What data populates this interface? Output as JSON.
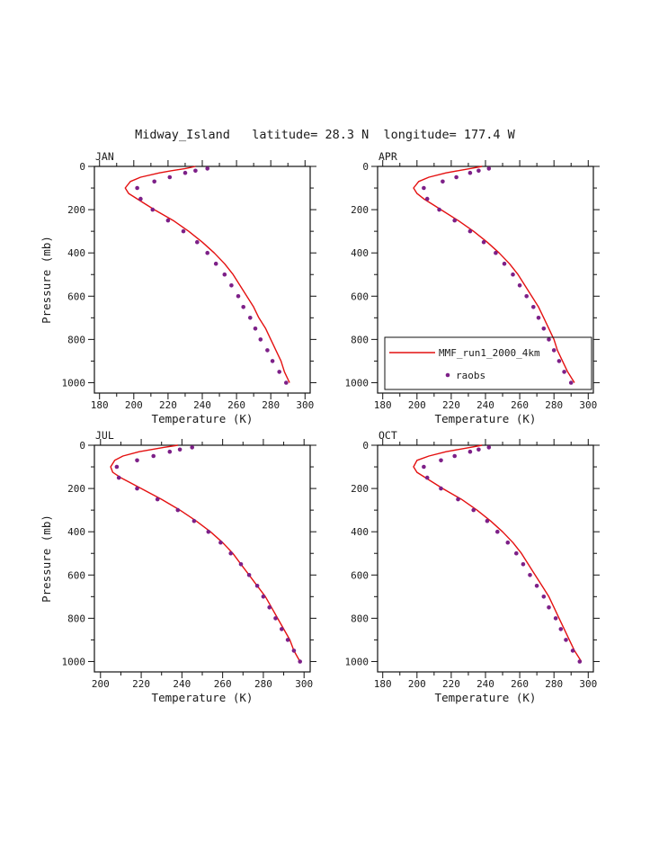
{
  "figure": {
    "title": "Midway_Island   latitude= 28.3 N  longitude= 177.4 W"
  },
  "colors": {
    "mmf_line": "#e41010",
    "raobs_marker": "#7d2088",
    "axis": "#111111",
    "background": "#ffffff"
  },
  "legend": {
    "panel": "apr",
    "position": "bottom-left-of-apr-panel",
    "entries": [
      {
        "label": "MMF_run1_2000_4km",
        "type": "line",
        "color": "#e41010"
      },
      {
        "label": "raobs",
        "type": "marker",
        "color": "#7d2088"
      }
    ]
  },
  "chart_data": [
    {
      "id": "jan",
      "type": "line",
      "title": "JAN",
      "xlabel": "Temperature (K)",
      "ylabel": "Pressure (mb)",
      "xlim": [
        177,
        303
      ],
      "ylim": [
        0,
        1048
      ],
      "xticks": [
        180,
        200,
        220,
        240,
        260,
        280,
        300
      ],
      "yticks": [
        0,
        200,
        400,
        600,
        800,
        1000
      ],
      "x_minor_step": 10,
      "y_minor_step": 100,
      "grid": false,
      "series": [
        {
          "name": "MMF_run1_2000_4km",
          "type": "line",
          "color": "#e41010",
          "pressure": [
            0,
            10,
            20,
            30,
            50,
            70,
            100,
            125,
            150,
            175,
            200,
            250,
            300,
            350,
            400,
            450,
            500,
            550,
            600,
            650,
            700,
            750,
            800,
            850,
            900,
            950,
            1000
          ],
          "temperature": [
            236,
            230,
            222,
            215,
            204,
            198,
            195,
            197,
            202,
            207,
            212,
            223,
            232,
            240,
            247,
            253,
            258,
            262,
            266,
            270,
            273,
            277,
            280,
            283,
            286,
            288,
            291
          ]
        },
        {
          "name": "raobs",
          "type": "scatter",
          "color": "#7d2088",
          "pressure": [
            10,
            20,
            30,
            50,
            70,
            100,
            150,
            200,
            250,
            300,
            350,
            400,
            450,
            500,
            550,
            600,
            650,
            700,
            750,
            800,
            850,
            900,
            950,
            1000
          ],
          "temperature": [
            243,
            236,
            230,
            221,
            212,
            202,
            204,
            211,
            220,
            229,
            237,
            243,
            248,
            253,
            257,
            261,
            264,
            268,
            271,
            274,
            278,
            281,
            285,
            289
          ]
        }
      ]
    },
    {
      "id": "apr",
      "type": "line",
      "title": "APR",
      "xlabel": "Temperature (K)",
      "ylabel": "",
      "xlim": [
        177,
        303
      ],
      "ylim": [
        0,
        1048
      ],
      "xticks": [
        180,
        200,
        220,
        240,
        260,
        280,
        300
      ],
      "yticks": [
        0,
        200,
        400,
        600,
        800,
        1000
      ],
      "x_minor_step": 10,
      "y_minor_step": 100,
      "grid": false,
      "series": [
        {
          "name": "MMF_run1_2000_4km",
          "type": "line",
          "color": "#e41010",
          "pressure": [
            0,
            10,
            20,
            30,
            50,
            70,
            100,
            125,
            150,
            175,
            200,
            250,
            300,
            350,
            400,
            450,
            500,
            550,
            600,
            650,
            700,
            750,
            800,
            850,
            900,
            950,
            1000
          ],
          "temperature": [
            238,
            231,
            224,
            217,
            207,
            201,
            198,
            200,
            204,
            209,
            214,
            224,
            233,
            241,
            248,
            254,
            259,
            263,
            267,
            271,
            274,
            277,
            280,
            282,
            285,
            288,
            292
          ]
        },
        {
          "name": "raobs",
          "type": "scatter",
          "color": "#7d2088",
          "pressure": [
            10,
            20,
            30,
            50,
            70,
            100,
            150,
            200,
            250,
            300,
            350,
            400,
            450,
            500,
            550,
            600,
            650,
            700,
            750,
            800,
            850,
            900,
            950,
            1000
          ],
          "temperature": [
            242,
            236,
            231,
            223,
            215,
            204,
            206,
            213,
            222,
            231,
            239,
            246,
            251,
            256,
            260,
            264,
            268,
            271,
            274,
            277,
            280,
            283,
            286,
            290
          ]
        }
      ]
    },
    {
      "id": "jul",
      "type": "line",
      "title": "JUL",
      "xlabel": "Temperature (K)",
      "ylabel": "Pressure (mb)",
      "xlim": [
        197,
        303
      ],
      "ylim": [
        0,
        1048
      ],
      "xticks": [
        200,
        220,
        240,
        260,
        280,
        300
      ],
      "yticks": [
        0,
        200,
        400,
        600,
        800,
        1000
      ],
      "x_minor_step": 10,
      "y_minor_step": 100,
      "grid": false,
      "series": [
        {
          "name": "MMF_run1_2000_4km",
          "type": "line",
          "color": "#e41010",
          "pressure": [
            0,
            10,
            20,
            30,
            50,
            70,
            100,
            125,
            150,
            175,
            200,
            250,
            300,
            350,
            400,
            450,
            500,
            550,
            600,
            650,
            700,
            750,
            800,
            850,
            900,
            950,
            1000
          ],
          "temperature": [
            238,
            231,
            225,
            219,
            211,
            207,
            205,
            206,
            210,
            215,
            220,
            230,
            239,
            247,
            254,
            260,
            265,
            269,
            273,
            277,
            281,
            284,
            287,
            290,
            293,
            295,
            298
          ]
        },
        {
          "name": "raobs",
          "type": "scatter",
          "color": "#7d2088",
          "pressure": [
            10,
            20,
            30,
            50,
            70,
            100,
            150,
            200,
            250,
            300,
            350,
            400,
            450,
            500,
            550,
            600,
            650,
            700,
            750,
            800,
            850,
            900,
            950,
            1000
          ],
          "temperature": [
            245,
            239,
            234,
            226,
            218,
            208,
            209,
            218,
            228,
            238,
            246,
            253,
            259,
            264,
            269,
            273,
            277,
            280,
            283,
            286,
            289,
            292,
            295,
            298
          ]
        }
      ]
    },
    {
      "id": "oct",
      "type": "line",
      "title": "OCT",
      "xlabel": "Temperature (K)",
      "ylabel": "",
      "xlim": [
        177,
        303
      ],
      "ylim": [
        0,
        1048
      ],
      "xticks": [
        180,
        200,
        220,
        240,
        260,
        280,
        300
      ],
      "yticks": [
        0,
        200,
        400,
        600,
        800,
        1000
      ],
      "x_minor_step": 10,
      "y_minor_step": 100,
      "grid": false,
      "series": [
        {
          "name": "MMF_run1_2000_4km",
          "type": "line",
          "color": "#e41010",
          "pressure": [
            0,
            10,
            20,
            30,
            50,
            70,
            100,
            125,
            150,
            175,
            200,
            250,
            300,
            350,
            400,
            450,
            500,
            550,
            600,
            650,
            700,
            750,
            800,
            850,
            900,
            950,
            1000
          ],
          "temperature": [
            238,
            231,
            224,
            217,
            207,
            200,
            198,
            200,
            205,
            210,
            215,
            226,
            235,
            243,
            250,
            256,
            261,
            265,
            269,
            273,
            277,
            280,
            283,
            286,
            289,
            292,
            296
          ]
        },
        {
          "name": "raobs",
          "type": "scatter",
          "color": "#7d2088",
          "pressure": [
            10,
            20,
            30,
            50,
            70,
            100,
            150,
            200,
            250,
            300,
            350,
            400,
            450,
            500,
            550,
            600,
            650,
            700,
            750,
            800,
            850,
            900,
            950,
            1000
          ],
          "temperature": [
            242,
            236,
            231,
            222,
            214,
            204,
            206,
            214,
            224,
            233,
            241,
            247,
            253,
            258,
            262,
            266,
            270,
            274,
            277,
            281,
            284,
            287,
            291,
            295
          ]
        }
      ]
    }
  ]
}
